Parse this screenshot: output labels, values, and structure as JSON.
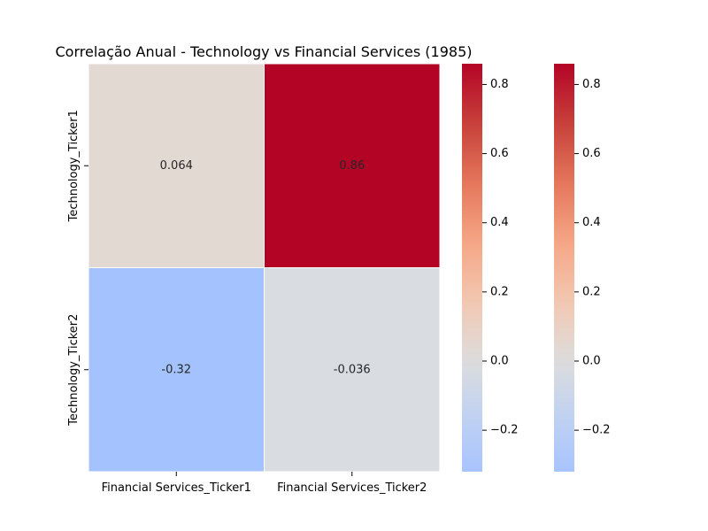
{
  "chart_data": {
    "type": "heatmap",
    "title": "Correlação Anual - Technology vs Financial Services (1985)",
    "x_categories": [
      "Financial Services_Ticker1",
      "Financial Services_Ticker2"
    ],
    "y_categories": [
      "Technology_Ticker1",
      "Technology_Ticker2"
    ],
    "values": [
      [
        0.064,
        0.86
      ],
      [
        -0.32,
        -0.036
      ]
    ],
    "cell_labels": [
      [
        "0.064",
        "0.86"
      ],
      [
        "-0.32",
        "-0.036"
      ]
    ],
    "colormap": "coolwarm",
    "vmin": -0.32,
    "vmax": 0.86,
    "center": 0,
    "cell_colors": [
      [
        "#e3d9d3",
        "#b40426"
      ],
      [
        "#a3c2fe",
        "#d9dce1"
      ]
    ],
    "colorbars": [
      {
        "ticks": [
          -0.2,
          0.0,
          0.2,
          0.4,
          0.6,
          0.8
        ],
        "tick_labels": [
          "−0.2",
          "0.0",
          "0.2",
          "0.4",
          "0.6",
          "0.8"
        ]
      },
      {
        "ticks": [
          -0.2,
          0.0,
          0.2,
          0.4,
          0.6,
          0.8
        ],
        "tick_labels": [
          "−0.2",
          "0.0",
          "0.2",
          "0.4",
          "0.6",
          "0.8"
        ]
      }
    ]
  }
}
